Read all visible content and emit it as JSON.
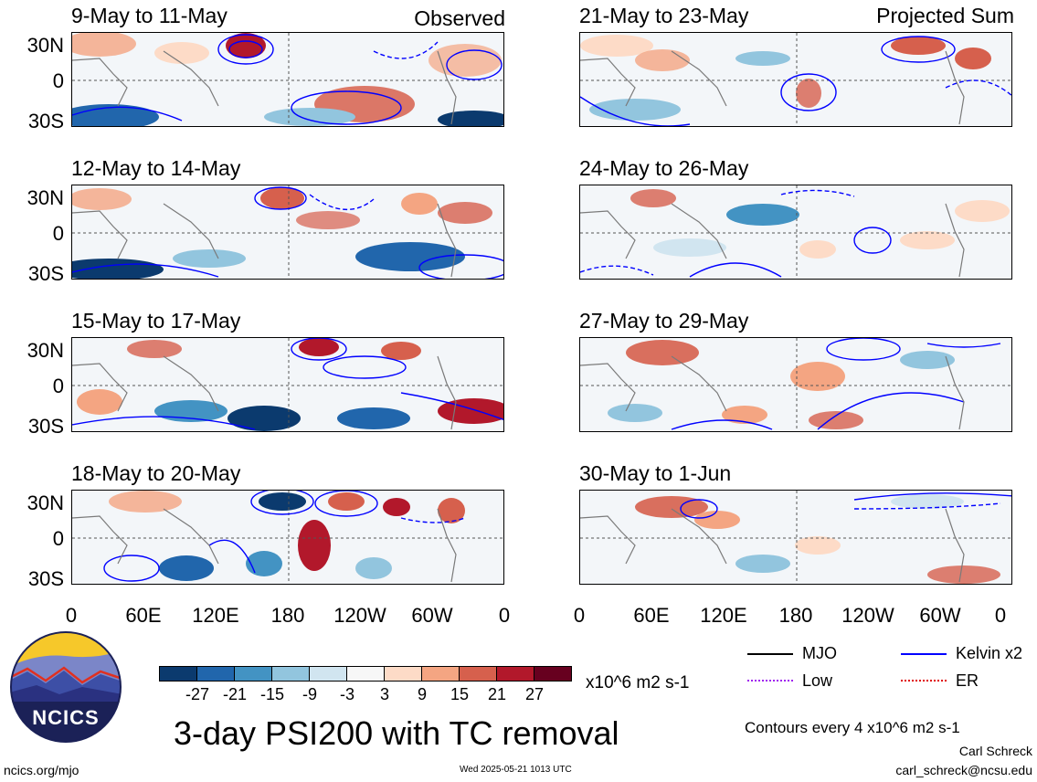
{
  "panels": {
    "left": [
      {
        "title": "9-May to 11-May",
        "label": "Observed"
      },
      {
        "title": "12-May to 14-May",
        "label": ""
      },
      {
        "title": "15-May to 17-May",
        "label": ""
      },
      {
        "title": "18-May to 20-May",
        "label": ""
      }
    ],
    "right": [
      {
        "title": "21-May to 23-May",
        "label": "Projected Sum"
      },
      {
        "title": "24-May to 26-May",
        "label": ""
      },
      {
        "title": "27-May to 29-May",
        "label": ""
      },
      {
        "title": "30-May to 1-Jun",
        "label": ""
      }
    ]
  },
  "axes": {
    "lat_ticks": [
      "30N",
      "0",
      "30S"
    ],
    "lon_ticks": [
      "0",
      "60E",
      "120E",
      "180",
      "120W",
      "60W",
      "0"
    ]
  },
  "colorbar": {
    "labels": [
      "-27",
      "-21",
      "-15",
      "-9",
      "-3",
      "3",
      "9",
      "15",
      "21",
      "27"
    ],
    "colors": [
      "#0b3a6e",
      "#2166ac",
      "#4393c3",
      "#92c5de",
      "#d1e5f0",
      "#f7f7f7",
      "#fddbc7",
      "#f4a582",
      "#d6604d",
      "#b2182b",
      "#67001f"
    ],
    "units": "x10^6 m2 s-1"
  },
  "legend": {
    "items": [
      {
        "label": "MJO",
        "color": "#000000",
        "style": "solid"
      },
      {
        "label": "Kelvin x2",
        "color": "#0000ff",
        "style": "solid"
      },
      {
        "label": "Low",
        "color": "#a020f0",
        "style": "dotted"
      },
      {
        "label": "ER",
        "color": "#e00000",
        "style": "dotted"
      }
    ],
    "contour_note": "Contours every 4 x10^6 m2 s-1"
  },
  "logo": {
    "text": "NCICS"
  },
  "title": "3-day PSI200 with TC removal",
  "footer": {
    "url": "ncics.org/mjo",
    "timestamp": "Wed 2025-05-21 1013 UTC",
    "author": "Carl Schreck",
    "email": "carl_schreck@ncsu.edu"
  }
}
